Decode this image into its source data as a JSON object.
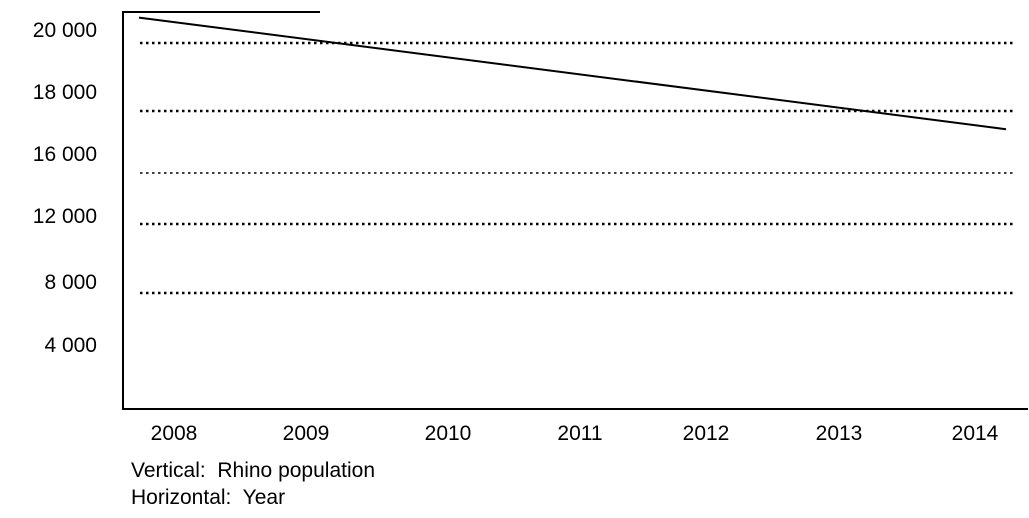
{
  "chart_data": {
    "type": "line",
    "title": "",
    "ytick_labels": [
      "20 000",
      "18 000",
      "16 000",
      "12 000",
      "8 000",
      "4 000"
    ],
    "xtick_labels": [
      "2008",
      "2009",
      "2010",
      "2011",
      "2012",
      "2013",
      "2014"
    ],
    "series": [
      {
        "x": [
          "2008",
          "2014"
        ],
        "values": [
          20400,
          16800
        ]
      }
    ],
    "grid": "horizontal dotted",
    "legend": "none"
  },
  "captions": {
    "vertical": "Vertical:  Rhino population",
    "horizontal": "Horizontal:  Year"
  },
  "colors": {
    "line": "#000000",
    "axis": "#000000",
    "grid": "#000000"
  }
}
